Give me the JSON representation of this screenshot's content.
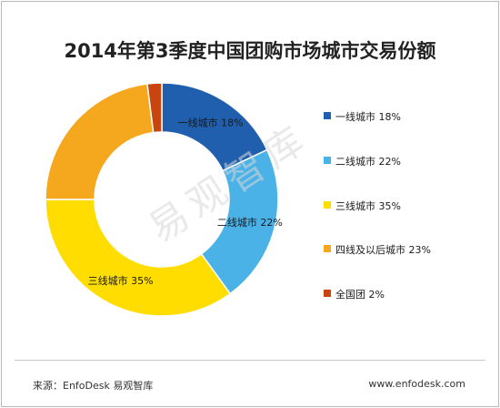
{
  "chart_data": {
    "type": "pie",
    "title": "2014年第3季度中国团购市场城市交易份额",
    "categories": [
      "一线城市",
      "二线城市",
      "三线城市",
      "四线及以后城市",
      "全国团"
    ],
    "values": [
      18,
      22,
      35,
      23,
      2
    ],
    "unit": "%",
    "colors": [
      "#1f5fad",
      "#4bb2e8",
      "#ffdd00",
      "#f5a81e",
      "#c9450f"
    ],
    "slice_labels": [
      "一线城市 18%",
      "二线城市 22%",
      "三线城市 35%",
      "",
      ""
    ],
    "legend": {
      "position": "right",
      "entries": [
        "一线城市 18%",
        "二线城市 22%",
        "三线城市 35%",
        "四线及以后城市 23%",
        "全国团 2%"
      ]
    },
    "donut": true
  },
  "watermark": "易观智库",
  "footer": {
    "source": "来源：EnfoDesk 易观智库",
    "site": "www.enfodesk.com"
  }
}
